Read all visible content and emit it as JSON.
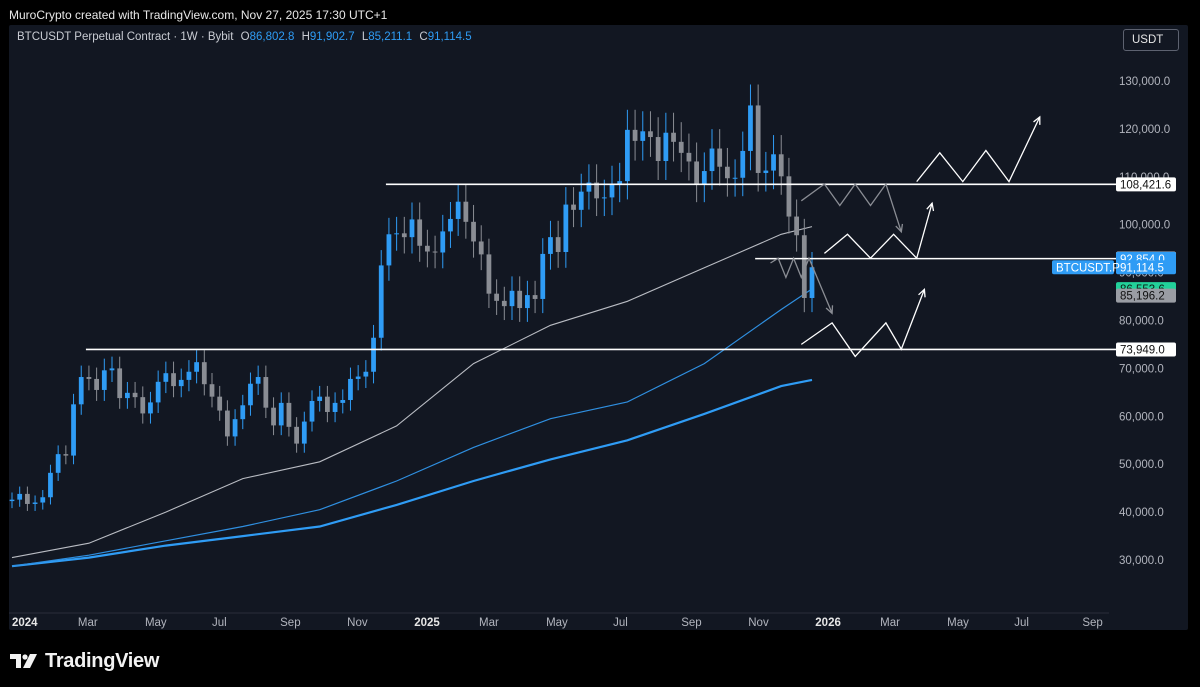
{
  "header": {
    "credit": "MuroCrypto created with TradingView.com, Nov 27, 2025 17:30 UTC+1",
    "symbol": "BTCUSDT Perpetual Contract · 1W · Bybit",
    "o_label": "O",
    "o_value": "86,802.8",
    "h_label": "H",
    "h_value": "91,902.7",
    "l_label": "L",
    "l_value": "85,211.1",
    "c_label": "C",
    "c_value": "91,114.5",
    "currency": "USDT"
  },
  "footer": {
    "brand": "TradingView"
  },
  "colors": {
    "background": "#121722",
    "up": "#2f9cf5",
    "down": "#8a8d94",
    "ma_gray": "#b9bcc3",
    "ma_blue_thin": "#2f8fe0",
    "ma_blue_thick": "#2f9cf5",
    "level_line": "#ffffff",
    "green_tag": "#22d19a"
  },
  "chart_data": {
    "type": "candlestick",
    "timeframe": "1W",
    "y_axis": {
      "ylim": [
        20000,
        140000
      ],
      "ticks": [
        "30,000.0",
        "40,000.0",
        "50,000.0",
        "60,000.0",
        "70,000.0",
        "80,000.0",
        "90,000.0",
        "100,000.0",
        "110,000.0",
        "120,000.0",
        "130,000.0"
      ],
      "tick_values": [
        30000,
        40000,
        50000,
        60000,
        70000,
        80000,
        90000,
        100000,
        110000,
        120000,
        130000
      ]
    },
    "x_axis": {
      "start": "2024-01-01",
      "end": "2026-09-28",
      "ticks": [
        {
          "label": "2024",
          "date": "2024-01-01",
          "bold": true
        },
        {
          "label": "Mar",
          "date": "2024-03-01",
          "bold": false
        },
        {
          "label": "May",
          "date": "2024-05-01",
          "bold": false
        },
        {
          "label": "Jul",
          "date": "2024-07-01",
          "bold": false
        },
        {
          "label": "Sep",
          "date": "2024-09-01",
          "bold": false
        },
        {
          "label": "Nov",
          "date": "2024-11-01",
          "bold": false
        },
        {
          "label": "2025",
          "date": "2025-01-01",
          "bold": true
        },
        {
          "label": "Mar",
          "date": "2025-03-01",
          "bold": false
        },
        {
          "label": "May",
          "date": "2025-05-01",
          "bold": false
        },
        {
          "label": "Jul",
          "date": "2025-07-01",
          "bold": false
        },
        {
          "label": "Sep",
          "date": "2025-09-01",
          "bold": false
        },
        {
          "label": "Nov",
          "date": "2025-11-01",
          "bold": false
        },
        {
          "label": "2026",
          "date": "2026-01-01",
          "bold": true
        },
        {
          "label": "Mar",
          "date": "2026-03-01",
          "bold": false
        },
        {
          "label": "May",
          "date": "2026-05-01",
          "bold": false
        },
        {
          "label": "Jul",
          "date": "2026-07-01",
          "bold": false
        },
        {
          "label": "Sep",
          "date": "2026-09-01",
          "bold": false
        }
      ]
    },
    "candles_start": "2024-01-01",
    "closes": [
      42600,
      43800,
      41700,
      42000,
      43100,
      48200,
      52100,
      51800,
      62500,
      68200,
      67800,
      65500,
      69600,
      70000,
      63800,
      64900,
      64000,
      60600,
      62900,
      67200,
      69000,
      66300,
      67600,
      69300,
      71300,
      66700,
      64100,
      61200,
      55800,
      59400,
      62300,
      66800,
      68200,
      61800,
      58100,
      62800,
      57800,
      54300,
      58900,
      63200,
      64100,
      60900,
      62800,
      63400,
      67800,
      68300,
      69300,
      76400,
      91500,
      98000,
      98200,
      97400,
      101100,
      95600,
      94400,
      94200,
      98600,
      101200,
      104800,
      100600,
      96500,
      93800,
      85600,
      84100,
      83000,
      86200,
      82600,
      85300,
      84500,
      93900,
      97400,
      94300,
      104200,
      103100,
      106900,
      108800,
      105500,
      105700,
      108500,
      109100,
      119800,
      117500,
      119500,
      118300,
      113300,
      119200,
      117300,
      115000,
      113200,
      108500,
      111200,
      115900,
      112100,
      109700,
      109800,
      115400,
      124900,
      110800,
      111300,
      114700,
      110100,
      101700,
      97800,
      84700,
      91114
    ],
    "ma_gray": [
      [
        0,
        30500
      ],
      [
        10,
        33500
      ],
      [
        20,
        40000
      ],
      [
        30,
        47000
      ],
      [
        40,
        50500
      ],
      [
        50,
        58000
      ],
      [
        60,
        71000
      ],
      [
        70,
        79000
      ],
      [
        80,
        84000
      ],
      [
        90,
        91000
      ],
      [
        100,
        98000
      ],
      [
        104,
        99600
      ]
    ],
    "ma_blue_thin": [
      [
        0,
        28700
      ],
      [
        10,
        31000
      ],
      [
        20,
        34000
      ],
      [
        30,
        37000
      ],
      [
        40,
        40500
      ],
      [
        50,
        46500
      ],
      [
        60,
        53500
      ],
      [
        70,
        59500
      ],
      [
        80,
        63000
      ],
      [
        90,
        71000
      ],
      [
        100,
        82300
      ],
      [
        104,
        86600
      ]
    ],
    "ma_blue_thick": [
      [
        0,
        28700
      ],
      [
        10,
        30500
      ],
      [
        20,
        33000
      ],
      [
        30,
        35000
      ],
      [
        40,
        37000
      ],
      [
        50,
        41500
      ],
      [
        60,
        46500
      ],
      [
        70,
        51000
      ],
      [
        80,
        55000
      ],
      [
        90,
        60500
      ],
      [
        100,
        66300
      ],
      [
        104,
        67600
      ]
    ],
    "levels": [
      {
        "value": 108421.6,
        "label": "108,421.6",
        "start": "2024-12-09"
      },
      {
        "value": 92920.1,
        "label": "92,920.1",
        "start": "2025-11-10"
      },
      {
        "value": 73949.0,
        "label": "73,949.0",
        "start": "2024-03-11"
      }
    ],
    "price_tags": [
      {
        "value": 92920.1,
        "label": "92,920.1",
        "style": "white"
      },
      {
        "value": 92854.0,
        "label": "92,854.0",
        "style": "blue"
      },
      {
        "value": 91114.5,
        "label": "91,114.5",
        "style": "blue"
      },
      {
        "value": 86553.6,
        "label": "86,553.6",
        "style": "green"
      },
      {
        "value": 85196.2,
        "label": "85,196.2",
        "style": "gray"
      },
      {
        "value": 108421.6,
        "label": "108,421.6",
        "style": "white"
      },
      {
        "value": 73949.0,
        "label": "73,949.0",
        "style": "white"
      }
    ],
    "symbol_tag": "BTCUSDT.P",
    "projections": [
      {
        "color": "#ffffff",
        "points": [
          [
            "2026-04-06",
            109000
          ],
          [
            "2026-04-27",
            115000
          ],
          [
            "2026-05-18",
            109000
          ],
          [
            "2026-06-08",
            115500
          ],
          [
            "2026-06-29",
            109000
          ],
          [
            "2026-07-27",
            122500
          ]
        ],
        "arrow": true
      },
      {
        "color": "#ffffff",
        "points": [
          [
            "2026-01-12",
            94000
          ],
          [
            "2026-02-02",
            98000
          ],
          [
            "2026-02-23",
            93000
          ],
          [
            "2026-03-16",
            98000
          ],
          [
            "2026-04-06",
            93000
          ],
          [
            "2026-04-20",
            104500
          ]
        ],
        "arrow": true
      },
      {
        "color": "#ffffff",
        "points": [
          [
            "2025-12-22",
            75000
          ],
          [
            "2026-01-19",
            79500
          ],
          [
            "2026-02-09",
            72500
          ],
          [
            "2026-03-09",
            79500
          ],
          [
            "2026-03-23",
            74000
          ],
          [
            "2026-04-13",
            86500
          ]
        ],
        "arrow": true
      },
      {
        "color": "#8a8d94",
        "points": [
          [
            "2025-12-22",
            105000
          ],
          [
            "2026-01-12",
            108500
          ],
          [
            "2026-01-26",
            104000
          ],
          [
            "2026-02-09",
            108500
          ],
          [
            "2026-02-23",
            104000
          ],
          [
            "2026-03-09",
            108500
          ],
          [
            "2026-03-23",
            98500
          ]
        ],
        "arrow": true
      },
      {
        "color": "#8a8d94",
        "points": [
          [
            "2025-11-24",
            92000
          ],
          [
            "2025-12-01",
            93000
          ],
          [
            "2025-12-08",
            89000
          ],
          [
            "2025-12-15",
            93000
          ],
          [
            "2025-12-22",
            89000
          ],
          [
            "2025-12-29",
            93000
          ],
          [
            "2026-01-19",
            81500
          ]
        ],
        "arrow": true
      }
    ]
  }
}
